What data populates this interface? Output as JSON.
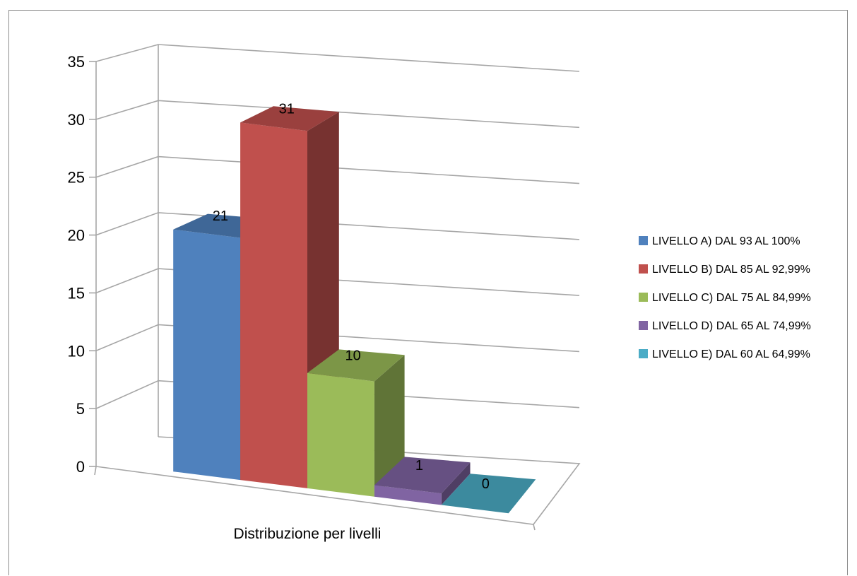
{
  "chart_data": {
    "type": "bar",
    "variant": "3d-column",
    "xlabel": "Distribuzione per livelli",
    "ylabel": "",
    "ylim": [
      0,
      35
    ],
    "yticks": [
      0,
      5,
      10,
      15,
      20,
      25,
      30,
      35
    ],
    "grid": true,
    "legend_position": "right",
    "series": [
      {
        "name": "LIVELLO A) DAL 93 AL 100%",
        "value": 21,
        "label": "21",
        "color": "#4F81BD"
      },
      {
        "name": "LIVELLO B) DAL 85 AL 92,99%",
        "value": 31,
        "label": "31",
        "color": "#C0504D"
      },
      {
        "name": "LIVELLO C) DAL 75 AL 84,99%",
        "value": 10,
        "label": "10",
        "color": "#9BBB59"
      },
      {
        "name": "LIVELLO D) DAL 65 AL 74,99%",
        "value": 1,
        "label": "1",
        "color": "#8064A2"
      },
      {
        "name": "LIVELLO E) DAL 60 AL 64,99%",
        "value": 0,
        "label": "0",
        "color": "#4BACC6"
      }
    ]
  }
}
